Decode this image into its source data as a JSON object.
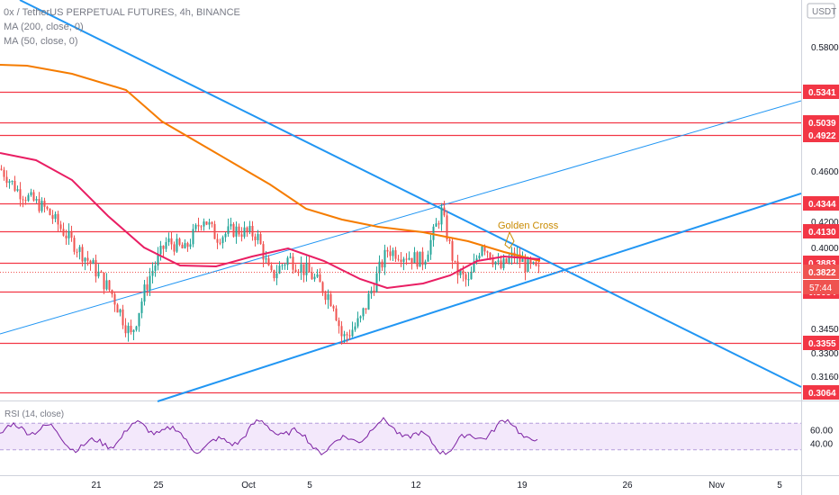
{
  "chart_data": {
    "type": "candlestick",
    "symbol_line": "0x / TetherUS PERPETUAL FUTURES, 4h, BINANCE",
    "indicators": [
      "MA (200, close, 0)",
      "MA (50, close, 0)"
    ],
    "currency_button": "USDT",
    "price_axis_ticks": [
      "0.5800",
      "0.4600",
      "0.4200",
      "0.4000",
      "0.3450",
      "0.3300",
      "0.3160"
    ],
    "horizontal_levels": [
      0.5341,
      0.5039,
      0.4922,
      0.4344,
      0.413,
      0.3883,
      0.3684,
      0.3355,
      0.3064
    ],
    "level_labels": [
      "0.5341",
      "0.5039",
      "0.4922",
      "0.4344",
      "0.4130",
      "0.3883",
      "0.3684",
      "0.3355",
      "0.3064"
    ],
    "last_price": "0.3822",
    "countdown": "57:44",
    "annotation": "Golden Cross",
    "x_ticks": [
      "21",
      "25",
      "Oct",
      "5",
      "12",
      "19",
      "26",
      "Nov",
      "5"
    ],
    "rsi": {
      "label": "RSI (14, close)",
      "ticks": [
        "60.00",
        "40.00"
      ],
      "upper_band": 70,
      "lower_band": 30
    },
    "colors": {
      "level_line": "#f23645",
      "trendline": "#2196f3",
      "ma200": "#f57c00",
      "ma50": "#e91e63",
      "candle_up": "#26a69a",
      "candle_down": "#ef5350",
      "rsi_line": "#7b1fa2",
      "annotation": "#c98a00"
    }
  }
}
